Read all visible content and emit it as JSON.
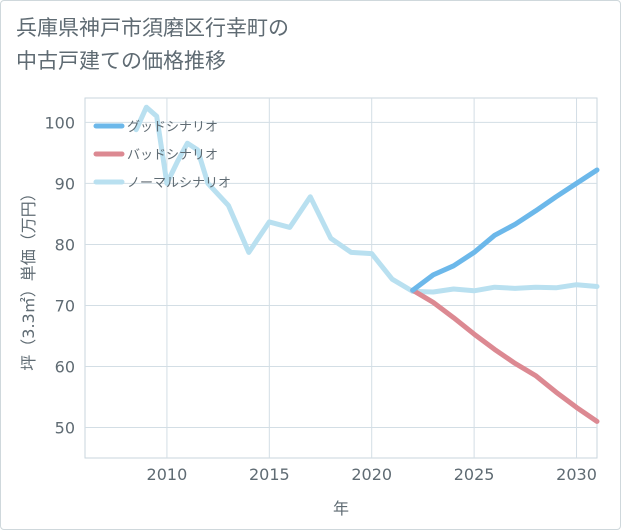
{
  "chart_data": {
    "type": "line",
    "title": "兵庫県神戸市須磨区行幸町の中古戸建ての価格推移",
    "title_lines": [
      "兵庫県神戸市須磨区行幸町の",
      "中古戸建ての価格推移"
    ],
    "xlabel": "年",
    "ylabel": "坪（3.3㎡）単価（万円）",
    "xlim": [
      2006,
      2031
    ],
    "ylim": [
      45,
      104
    ],
    "xticks": [
      2010,
      2015,
      2020,
      2025,
      2030
    ],
    "yticks": [
      50,
      60,
      70,
      80,
      90,
      100
    ],
    "grid": true,
    "legend_position": "top-left",
    "series": [
      {
        "name": "グッドシナリオ",
        "color": "#6cb8ea",
        "x": [
          2022,
          2023,
          2024,
          2025,
          2026,
          2027,
          2028,
          2029,
          2030,
          2031
        ],
        "values": [
          72.5,
          75.0,
          76.5,
          78.7,
          81.5,
          83.3,
          85.5,
          87.8,
          90.0,
          92.2
        ]
      },
      {
        "name": "バッドシナリオ",
        "color": "#dc8992",
        "x": [
          2022,
          2023,
          2024,
          2025,
          2026,
          2027,
          2028,
          2029,
          2030,
          2031
        ],
        "values": [
          72.5,
          70.5,
          68.0,
          65.3,
          62.8,
          60.5,
          58.5,
          55.8,
          53.3,
          51.0
        ]
      },
      {
        "name": "ノーマルシナリオ",
        "color": "#b9e0f0",
        "x": [
          2008.5,
          2009,
          2009.5,
          2010,
          2010.5,
          2011,
          2011.5,
          2012,
          2013,
          2014,
          2015,
          2016,
          2017,
          2018,
          2019,
          2020,
          2021,
          2022,
          2023,
          2024,
          2025,
          2026,
          2027,
          2028,
          2029,
          2030,
          2031
        ],
        "values": [
          98.8,
          102.5,
          101.0,
          90.0,
          93.5,
          96.6,
          95.5,
          90.0,
          86.4,
          78.7,
          83.7,
          82.8,
          87.8,
          81.0,
          78.7,
          78.5,
          74.3,
          72.3,
          72.2,
          72.7,
          72.4,
          73.0,
          72.8,
          73.0,
          72.9,
          73.4,
          73.1
        ]
      }
    ]
  }
}
